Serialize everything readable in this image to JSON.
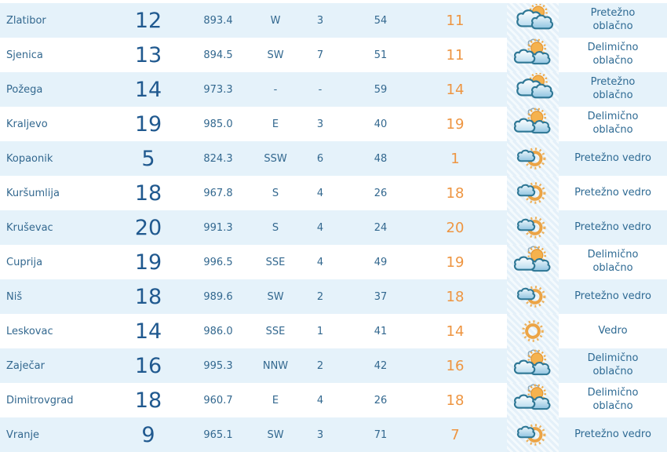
{
  "table": {
    "rows": [
      {
        "city": "Zlatibor",
        "temperature": "12",
        "pressure": "893.4",
        "wind_direction": "W",
        "wind_speed": "3",
        "humidity": "54",
        "feels_like": "11",
        "icon": "mostly-cloudy",
        "description_lines": [
          "Pretežno",
          "oblačno"
        ]
      },
      {
        "city": "Sjenica",
        "temperature": "13",
        "pressure": "894.5",
        "wind_direction": "SW",
        "wind_speed": "7",
        "humidity": "51",
        "feels_like": "11",
        "icon": "partly-cloudy",
        "description_lines": [
          "Delimično",
          "oblačno"
        ]
      },
      {
        "city": "Požega",
        "temperature": "14",
        "pressure": "973.3",
        "wind_direction": "-",
        "wind_speed": "-",
        "humidity": "59",
        "feels_like": "14",
        "icon": "mostly-cloudy",
        "description_lines": [
          "Pretežno",
          "oblačno"
        ]
      },
      {
        "city": "Kraljevo",
        "temperature": "19",
        "pressure": "985.0",
        "wind_direction": "E",
        "wind_speed": "3",
        "humidity": "40",
        "feels_like": "19",
        "icon": "partly-cloudy",
        "description_lines": [
          "Delimično",
          "oblačno"
        ]
      },
      {
        "city": "Kopaonik",
        "temperature": "5",
        "pressure": "824.3",
        "wind_direction": "SSW",
        "wind_speed": "6",
        "humidity": "48",
        "feels_like": "1",
        "icon": "mostly-clear",
        "description_lines": [
          "Pretežno vedro"
        ]
      },
      {
        "city": "Kuršumlija",
        "temperature": "18",
        "pressure": "967.8",
        "wind_direction": "S",
        "wind_speed": "4",
        "humidity": "26",
        "feels_like": "18",
        "icon": "mostly-clear",
        "description_lines": [
          "Pretežno vedro"
        ]
      },
      {
        "city": "Kruševac",
        "temperature": "20",
        "pressure": "991.3",
        "wind_direction": "S",
        "wind_speed": "4",
        "humidity": "24",
        "feels_like": "20",
        "icon": "mostly-clear",
        "description_lines": [
          "Pretežno vedro"
        ]
      },
      {
        "city": "Ćuprija",
        "temperature": "19",
        "pressure": "996.5",
        "wind_direction": "SSE",
        "wind_speed": "4",
        "humidity": "49",
        "feels_like": "19",
        "icon": "partly-cloudy",
        "description_lines": [
          "Delimično",
          "oblačno"
        ]
      },
      {
        "city": "Niš",
        "temperature": "18",
        "pressure": "989.6",
        "wind_direction": "SW",
        "wind_speed": "2",
        "humidity": "37",
        "feels_like": "18",
        "icon": "mostly-clear",
        "description_lines": [
          "Pretežno vedro"
        ]
      },
      {
        "city": "Leskovac",
        "temperature": "14",
        "pressure": "986.0",
        "wind_direction": "SSE",
        "wind_speed": "1",
        "humidity": "41",
        "feels_like": "14",
        "icon": "clear",
        "description_lines": [
          "Vedro"
        ]
      },
      {
        "city": "Zaječar",
        "temperature": "16",
        "pressure": "995.3",
        "wind_direction": "NNW",
        "wind_speed": "2",
        "humidity": "42",
        "feels_like": "16",
        "icon": "partly-cloudy",
        "description_lines": [
          "Delimično",
          "oblačno"
        ]
      },
      {
        "city": "Dimitrovgrad",
        "temperature": "18",
        "pressure": "960.7",
        "wind_direction": "E",
        "wind_speed": "4",
        "humidity": "26",
        "feels_like": "18",
        "icon": "partly-cloudy",
        "description_lines": [
          "Delimično",
          "oblačno"
        ]
      },
      {
        "city": "Vranje",
        "temperature": "9",
        "pressure": "965.1",
        "wind_direction": "SW",
        "wind_speed": "3",
        "humidity": "71",
        "feels_like": "7",
        "icon": "mostly-clear",
        "description_lines": [
          "Pretežno vedro"
        ]
      }
    ]
  },
  "colors": {
    "row_alt_background": "#e5f2fa",
    "row_background": "#ffffff",
    "text_blue": "#33688f",
    "temperature_blue": "#20598f",
    "feels_like_orange": "#ee9541",
    "description_blue": "#2e6a93",
    "sun_orange": "#eca445",
    "cloud_outline_teal": "#2e7795"
  }
}
